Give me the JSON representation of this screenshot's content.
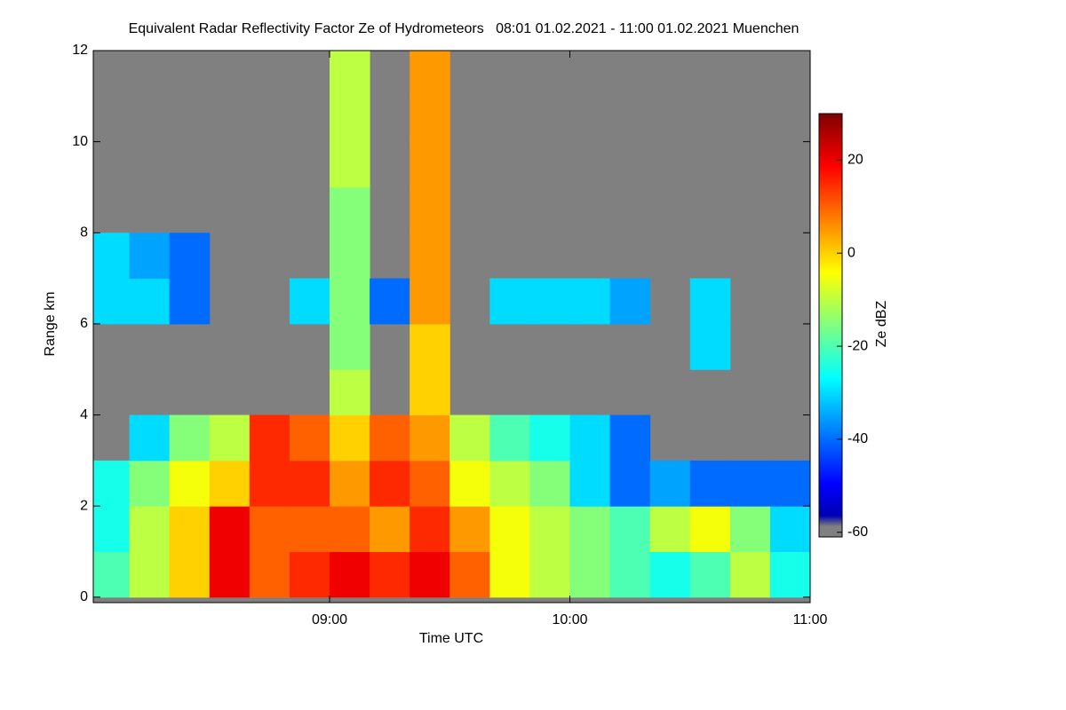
{
  "chart_data": {
    "type": "heatmap",
    "title": "Equivalent Radar Reflectivity Factor Ze of Hydrometeors   08:01 01.02.2021 - 11:00 01.02.2021 Muenchen",
    "xlabel": "Time UTC",
    "ylabel": "Range km",
    "colorbar_label": "Ze dBZ",
    "colormap": "jet",
    "background": "#808080",
    "xlim": [
      1,
      180
    ],
    "xticks": [
      {
        "value": 60,
        "label": "09:00"
      },
      {
        "value": 120,
        "label": "10:00"
      },
      {
        "value": 180,
        "label": "11:00"
      }
    ],
    "ylim": [
      -0.12,
      12
    ],
    "yticks": [
      0,
      2,
      4,
      6,
      8,
      10,
      12
    ],
    "clim": [
      -61,
      30
    ],
    "cticks": [
      -60,
      -40,
      -20,
      0,
      20
    ],
    "x": [
      5,
      15,
      25,
      35,
      45,
      55,
      65,
      75,
      85,
      95,
      105,
      115,
      125,
      135,
      145,
      155,
      165,
      175
    ],
    "y": [
      0.5,
      1.5,
      2.5,
      3.5,
      4.5,
      5.5,
      6.5,
      7.5,
      8.5,
      9.5,
      10.5,
      11.5
    ],
    "values": [
      [
        -20,
        -10,
        0,
        20,
        10,
        15,
        20,
        15,
        20,
        10,
        -5,
        -10,
        -15,
        -20,
        -25,
        -20,
        -10,
        -25
      ],
      [
        -25,
        -10,
        0,
        20,
        10,
        10,
        10,
        5,
        15,
        5,
        -5,
        -10,
        -15,
        -20,
        -10,
        -5,
        -15,
        -30
      ],
      [
        -25,
        -15,
        -5,
        0,
        15,
        15,
        5,
        15,
        10,
        -5,
        -10,
        -15,
        -30,
        -40,
        -35,
        -40,
        -40,
        -40
      ],
      [
        null,
        -30,
        -15,
        -10,
        15,
        10,
        0,
        10,
        5,
        -10,
        -20,
        -25,
        -30,
        -40,
        null,
        null,
        null,
        null
      ],
      [
        null,
        null,
        null,
        null,
        null,
        null,
        -10,
        null,
        0,
        null,
        null,
        null,
        null,
        null,
        null,
        null,
        null,
        null
      ],
      [
        null,
        null,
        null,
        null,
        null,
        null,
        -15,
        null,
        0,
        null,
        null,
        null,
        null,
        null,
        null,
        -30,
        null,
        null
      ],
      [
        -30,
        -30,
        -40,
        null,
        null,
        -30,
        -15,
        -40,
        5,
        null,
        -30,
        -30,
        -30,
        -35,
        null,
        -30,
        null,
        null
      ],
      [
        -30,
        -35,
        -40,
        null,
        null,
        null,
        -15,
        null,
        5,
        null,
        null,
        null,
        null,
        null,
        null,
        null,
        null,
        null
      ],
      [
        null,
        null,
        null,
        null,
        null,
        null,
        -15,
        null,
        5,
        null,
        null,
        null,
        null,
        null,
        null,
        null,
        null,
        null
      ],
      [
        null,
        null,
        null,
        null,
        null,
        null,
        -10,
        null,
        5,
        null,
        null,
        null,
        null,
        null,
        null,
        null,
        null,
        null
      ],
      [
        null,
        null,
        null,
        null,
        null,
        null,
        -10,
        null,
        5,
        null,
        null,
        null,
        null,
        null,
        null,
        null,
        null,
        null
      ],
      [
        null,
        null,
        null,
        null,
        null,
        null,
        -10,
        null,
        5,
        null,
        null,
        null,
        null,
        null,
        null,
        null,
        null,
        null
      ]
    ]
  }
}
